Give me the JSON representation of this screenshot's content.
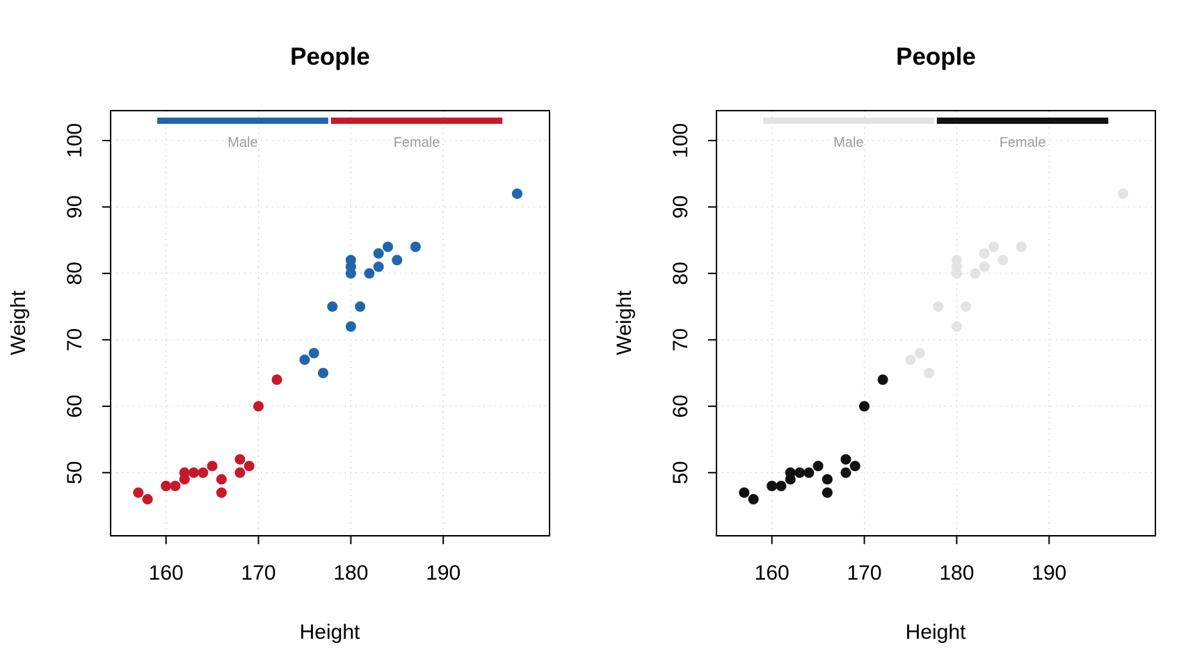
{
  "chart_data": [
    {
      "type": "scatter",
      "title": "People",
      "xlabel": "Height",
      "ylabel": "Weight",
      "xlim": [
        154,
        201.5
      ],
      "ylim": [
        40.5,
        104.5
      ],
      "xticks": [
        160,
        170,
        180,
        190
      ],
      "yticks": [
        50,
        60,
        70,
        80,
        90,
        100
      ],
      "grid": true,
      "legend": {
        "placement": "top",
        "entries": [
          "Male",
          "Female"
        ]
      },
      "series": [
        {
          "name": "Male",
          "color": "#2166ac",
          "points": [
            [
              175,
              67
            ],
            [
              176,
              68
            ],
            [
              177,
              65
            ],
            [
              178,
              75
            ],
            [
              180,
              72
            ],
            [
              180,
              80
            ],
            [
              180,
              81
            ],
            [
              180,
              82
            ],
            [
              181,
              75
            ],
            [
              182,
              80
            ],
            [
              183,
              81
            ],
            [
              183,
              83
            ],
            [
              184,
              84
            ],
            [
              185,
              82
            ],
            [
              187,
              84
            ],
            [
              198,
              92
            ]
          ]
        },
        {
          "name": "Female",
          "color": "#c8192a",
          "points": [
            [
              157,
              47
            ],
            [
              158,
              46
            ],
            [
              160,
              48
            ],
            [
              161,
              48
            ],
            [
              162,
              49
            ],
            [
              162,
              50
            ],
            [
              163,
              50
            ],
            [
              164,
              50
            ],
            [
              165,
              51
            ],
            [
              166,
              47
            ],
            [
              166,
              49
            ],
            [
              168,
              50
            ],
            [
              168,
              52
            ],
            [
              169,
              51
            ],
            [
              170,
              60
            ],
            [
              172,
              64
            ]
          ]
        }
      ]
    },
    {
      "type": "scatter",
      "title": "People",
      "xlabel": "Height",
      "ylabel": "Weight",
      "xlim": [
        154,
        201.5
      ],
      "ylim": [
        40.5,
        104.5
      ],
      "xticks": [
        160,
        170,
        180,
        190
      ],
      "yticks": [
        50,
        60,
        70,
        80,
        90,
        100
      ],
      "grid": true,
      "legend": {
        "placement": "top",
        "entries": [
          "Male",
          "Female"
        ]
      },
      "series": [
        {
          "name": "Male",
          "color": "#e3e3e3",
          "points": [
            [
              175,
              67
            ],
            [
              176,
              68
            ],
            [
              177,
              65
            ],
            [
              178,
              75
            ],
            [
              180,
              72
            ],
            [
              180,
              80
            ],
            [
              180,
              81
            ],
            [
              180,
              82
            ],
            [
              181,
              75
            ],
            [
              182,
              80
            ],
            [
              183,
              81
            ],
            [
              183,
              83
            ],
            [
              184,
              84
            ],
            [
              185,
              82
            ],
            [
              187,
              84
            ],
            [
              198,
              92
            ]
          ]
        },
        {
          "name": "Female",
          "color": "#111111",
          "points": [
            [
              157,
              47
            ],
            [
              158,
              46
            ],
            [
              160,
              48
            ],
            [
              161,
              48
            ],
            [
              162,
              49
            ],
            [
              162,
              50
            ],
            [
              163,
              50
            ],
            [
              164,
              50
            ],
            [
              165,
              51
            ],
            [
              166,
              47
            ],
            [
              166,
              49
            ],
            [
              168,
              50
            ],
            [
              168,
              52
            ],
            [
              169,
              51
            ],
            [
              170,
              60
            ],
            [
              172,
              64
            ]
          ]
        }
      ]
    }
  ]
}
